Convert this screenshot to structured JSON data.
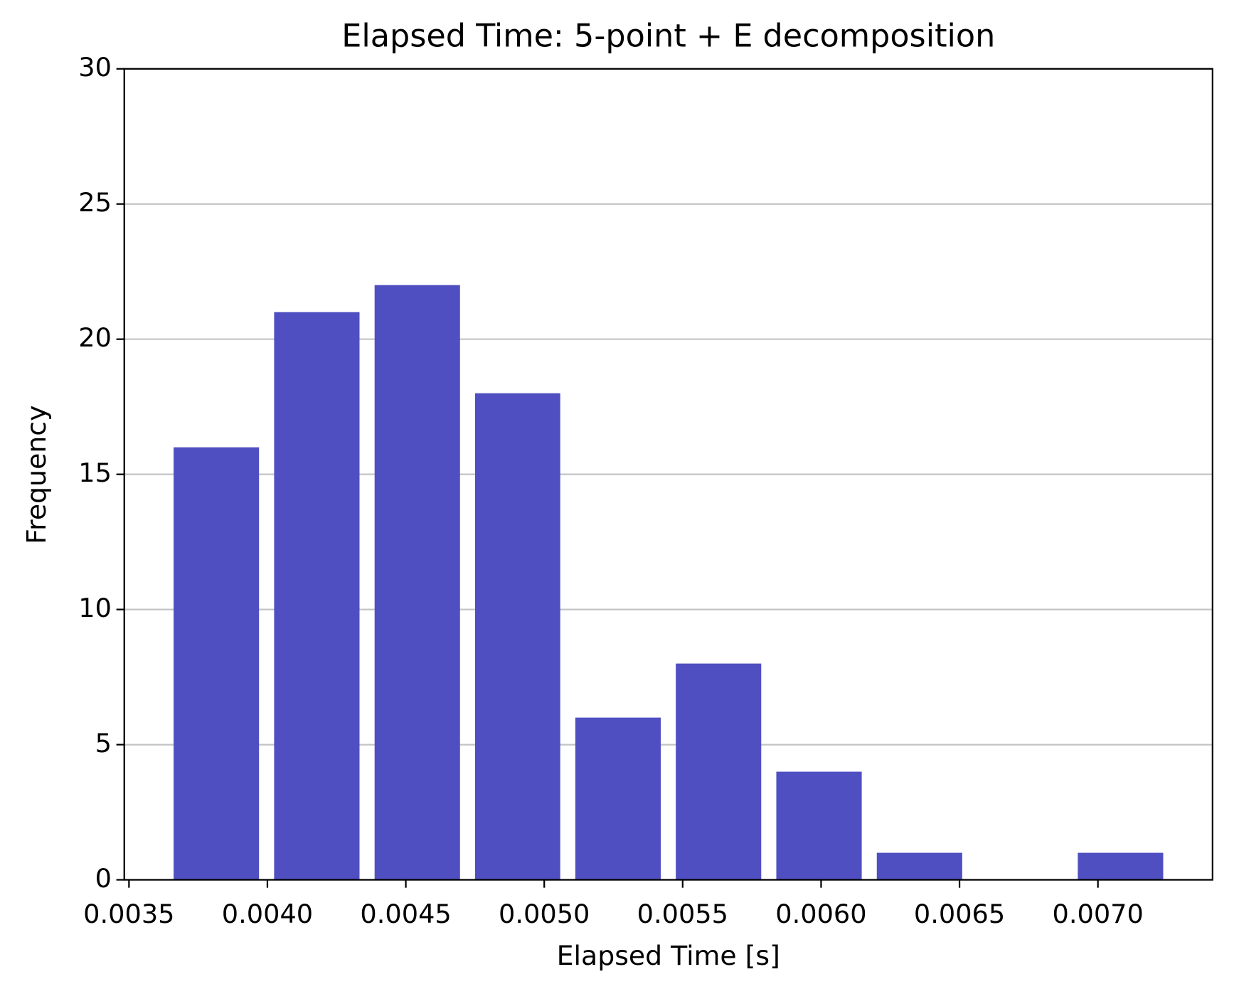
{
  "chart_data": {
    "type": "histogram",
    "title": "Elapsed Time: 5-point + E decomposition",
    "x_label": "Elapsed Time [s]",
    "y_label": "Frequency",
    "bins": [
      0.003634,
      0.003997,
      0.00436,
      0.004723,
      0.005085,
      0.005448,
      0.005811,
      0.006174,
      0.006537,
      0.0069,
      0.007263
    ],
    "values": [
      16,
      21,
      22,
      18,
      6,
      8,
      4,
      1,
      0,
      1
    ],
    "color": "#4f4fc2",
    "xlim": [
      0.003483,
      0.007414
    ],
    "ylim": [
      0,
      30
    ],
    "xticks": [
      0.0035,
      {
        "value": 0.004,
        "label": "0.0040"
      },
      0.0045,
      {
        "value": 0.005,
        "label": "0.0050"
      },
      0.0055,
      {
        "value": 0.006,
        "label": "0.0060"
      },
      0.0065,
      {
        "value": 0.007,
        "label": "0.0070"
      }
    ],
    "yticks": [
      0,
      5,
      10,
      15,
      20,
      25,
      30
    ],
    "grid": "y"
  }
}
